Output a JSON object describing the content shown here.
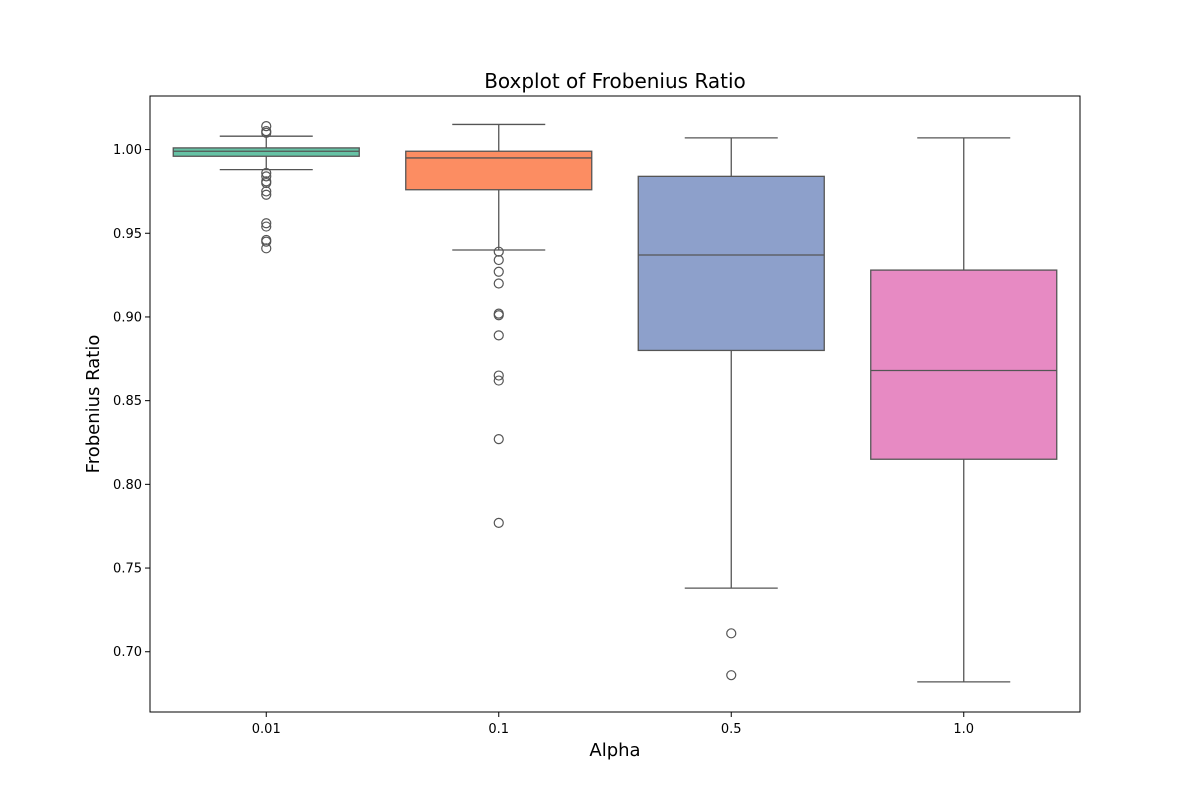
{
  "chart_data": {
    "type": "box",
    "title": "Boxplot of Frobenius Ratio",
    "xlabel": "Alpha",
    "ylabel": "Frobenius Ratio",
    "ylim": [
      0.664,
      1.032
    ],
    "yticks": [
      0.7,
      0.75,
      0.8,
      0.85,
      0.9,
      0.95,
      1.0
    ],
    "ytick_labels": [
      "0.70",
      "0.75",
      "0.80",
      "0.85",
      "0.90",
      "0.95",
      "1.00"
    ],
    "grid": false,
    "legend": "none",
    "categories": [
      "0.01",
      "0.1",
      "0.5",
      "1.0"
    ],
    "boxes": [
      {
        "category": "0.01",
        "color": "#66c2a5",
        "whisker_low": 0.988,
        "q1": 0.996,
        "median": 0.999,
        "q3": 1.001,
        "whisker_high": 1.008,
        "outliers": [
          1.014,
          1.011,
          1.01,
          0.986,
          0.984,
          0.981,
          0.98,
          0.975,
          0.973,
          0.956,
          0.954,
          0.946,
          0.945,
          0.941
        ]
      },
      {
        "category": "0.1",
        "color": "#fc8d62",
        "whisker_low": 0.94,
        "q1": 0.976,
        "median": 0.995,
        "q3": 0.999,
        "whisker_high": 1.015,
        "outliers": [
          0.939,
          0.934,
          0.927,
          0.92,
          0.902,
          0.901,
          0.889,
          0.865,
          0.862,
          0.827,
          0.777
        ]
      },
      {
        "category": "0.5",
        "color": "#8da0cb",
        "whisker_low": 0.738,
        "q1": 0.88,
        "median": 0.937,
        "q3": 0.984,
        "whisker_high": 1.007,
        "outliers": [
          0.711,
          0.686
        ]
      },
      {
        "category": "1.0",
        "color": "#e78ac3",
        "whisker_low": 0.682,
        "q1": 0.815,
        "median": 0.868,
        "q3": 0.928,
        "whisker_high": 1.007,
        "outliers": []
      }
    ]
  }
}
